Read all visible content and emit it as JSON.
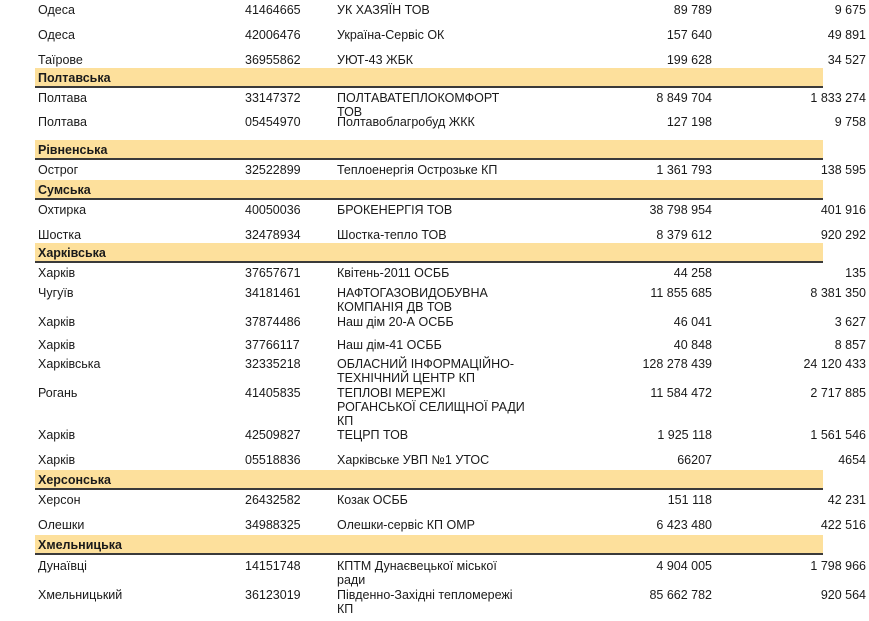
{
  "page": {
    "background": "#FFFFFF"
  },
  "colors": {
    "band": "#FDE09C",
    "band-border": "#3A3A3A",
    "text": "#1A1A1A"
  },
  "table": {
    "rows": [
      {
        "type": "data",
        "city": "Одеса",
        "code": "41464665",
        "name": "УК ХАЗЯЇН ТОВ",
        "value1": "89 789",
        "value2": "9 675"
      },
      {
        "type": "data",
        "city": "Одеса",
        "code": "42006476",
        "name": "Україна-Сервіс ОК",
        "value1": "157 640",
        "value2": "49 891"
      },
      {
        "type": "data",
        "city": "Таїрове",
        "code": "36955862",
        "name": "УЮТ-43 ЖБК",
        "value1": "199 628",
        "value2": "34 527"
      },
      {
        "type": "region",
        "label": "Полтавська"
      },
      {
        "type": "data",
        "city": "Полтава",
        "code": "33147372",
        "name": "ПОЛТАВАТЕПЛОКОМФОРТ\nТОВ",
        "value1": "8 849 704",
        "value2": "1 833 274"
      },
      {
        "type": "data",
        "city": "Полтава",
        "code": "05454970",
        "name": "Полтавоблагробуд ЖКК",
        "value1": "127 198",
        "value2": "9 758"
      },
      {
        "type": "region",
        "label": "Рівненська"
      },
      {
        "type": "data",
        "city": "Острог",
        "code": "32522899",
        "name": "Теплоенергія Острозьке КП",
        "value1": "1 361 793",
        "value2": "138 595"
      },
      {
        "type": "region",
        "label": "Сумська"
      },
      {
        "type": "data",
        "city": "Охтирка",
        "code": "40050036",
        "name": "БРОКЕНЕРГІЯ ТОВ",
        "value1": "38 798 954",
        "value2": "401 916"
      },
      {
        "type": "data",
        "city": "Шостка",
        "code": "32478934",
        "name": "Шостка-тепло ТОВ",
        "value1": "8 379 612",
        "value2": "920 292"
      },
      {
        "type": "region",
        "label": "Харківська"
      },
      {
        "type": "data",
        "city": "Харків",
        "code": "37657671",
        "name": "Квітень-2011 ОСББ",
        "value1": "44 258",
        "value2": "135"
      },
      {
        "type": "data",
        "city": "Чугуїв",
        "code": "34181461",
        "name": "НАФТОГАЗОВИДОБУВНА\nКОМПАНІЯ ДВ ТОВ",
        "value1": "11 855 685",
        "value2": "8 381 350"
      },
      {
        "type": "data",
        "city": "Харків",
        "code": "37874486",
        "name": "Наш дім 20-А ОСББ",
        "value1": "46 041",
        "value2": "3 627"
      },
      {
        "type": "data",
        "city": "Харків",
        "code": "37766117",
        "name": "Наш дім-41 ОСББ",
        "value1": "40 848",
        "value2": "8 857"
      },
      {
        "type": "data",
        "city": "Харківська",
        "code": "32335218",
        "name": "ОБЛАСНИЙ ІНФОРМАЦІЙНО-\nТЕХНІЧНИЙ ЦЕНТР КП",
        "value1": "128 278 439",
        "value2": "24 120 433"
      },
      {
        "type": "data",
        "city": "Рогань",
        "code": "41405835",
        "name": "ТЕПЛОВІ МЕРЕЖІ\nРОГАНСЬКОЇ СЕЛИЩНОЇ РАДИ\nКП",
        "value1": "11 584 472",
        "value2": "2 717 885"
      },
      {
        "type": "data",
        "city": "Харків",
        "code": "42509827",
        "name": "ТЕЦРП ТОВ",
        "value1": "1 925 118",
        "value2": "1 561 546"
      },
      {
        "type": "data",
        "city": "Харків",
        "code": "05518836",
        "name": "Харківське УВП №1 УТОС",
        "value1": "66207",
        "value2": "4654"
      },
      {
        "type": "region",
        "label": "Херсонська"
      },
      {
        "type": "data",
        "city": "Херсон",
        "code": "26432582",
        "name": "Козак ОСББ",
        "value1": "151 118",
        "value2": "42 231"
      },
      {
        "type": "data",
        "city": "Олешки",
        "code": "34988325",
        "name": "Олешки-сервіс КП ОМР",
        "value1": "6 423 480",
        "value2": "422 516"
      },
      {
        "type": "region",
        "label": "Хмельницька"
      },
      {
        "type": "data",
        "city": "Дунаївці",
        "code": "14151748",
        "name": "КПТМ Дунаєвецької міської\nради",
        "value1": "4 904 005",
        "value2": "1 798 966"
      },
      {
        "type": "data",
        "city": "Хмельницький",
        "code": "36123019",
        "name": "Південно-Західні тепломережі\nКП",
        "value1": "85 662 782",
        "value2": "920 564"
      }
    ]
  }
}
